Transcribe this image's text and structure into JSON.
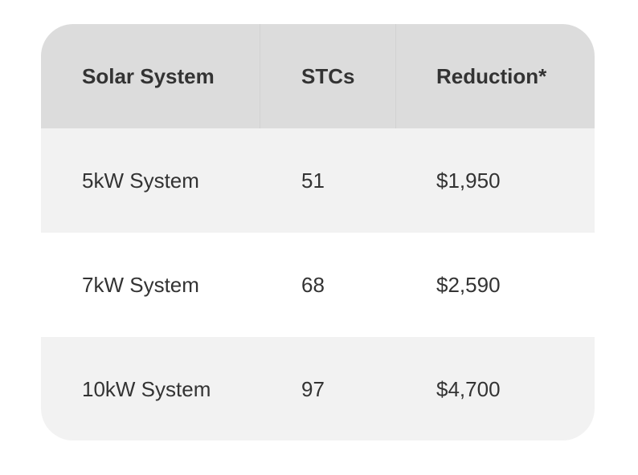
{
  "table": {
    "header": [
      "Solar System",
      "STCs",
      "Reduction*"
    ],
    "rows": [
      [
        "5kW System",
        "51",
        "$1,950"
      ],
      [
        "7kW System",
        "68",
        "$2,590"
      ],
      [
        "10kW System",
        "97",
        "$4,700"
      ]
    ]
  }
}
